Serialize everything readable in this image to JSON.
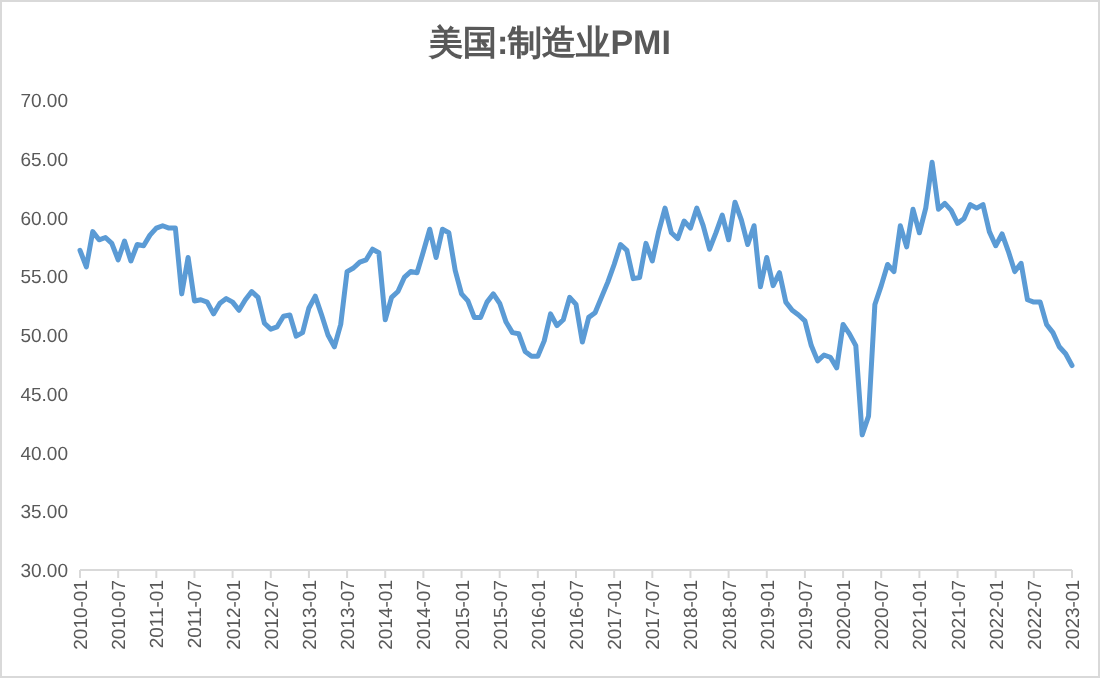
{
  "chart_data": {
    "type": "line",
    "title": "美国:制造业PMI",
    "categories": [
      "2010-01",
      null,
      null,
      null,
      null,
      null,
      "2010-07",
      null,
      null,
      null,
      null,
      null,
      "2011-01",
      null,
      null,
      null,
      null,
      null,
      "2011-07",
      null,
      null,
      null,
      null,
      null,
      "2012-01",
      null,
      null,
      null,
      null,
      null,
      "2012-07",
      null,
      null,
      null,
      null,
      null,
      "2013-01",
      null,
      null,
      null,
      null,
      null,
      "2013-07",
      null,
      null,
      null,
      null,
      null,
      "2014-01",
      null,
      null,
      null,
      null,
      null,
      "2014-07",
      null,
      null,
      null,
      null,
      null,
      "2015-01",
      null,
      null,
      null,
      null,
      null,
      "2015-07",
      null,
      null,
      null,
      null,
      null,
      "2016-01",
      null,
      null,
      null,
      null,
      null,
      "2016-07",
      null,
      null,
      null,
      null,
      null,
      "2017-01",
      null,
      null,
      null,
      null,
      null,
      "2017-07",
      null,
      null,
      null,
      null,
      null,
      "2018-01",
      null,
      null,
      null,
      null,
      null,
      "2018-07",
      null,
      null,
      null,
      null,
      null,
      "2019-01",
      null,
      null,
      null,
      null,
      null,
      "2019-07",
      null,
      null,
      null,
      null,
      null,
      "2020-01",
      null,
      null,
      null,
      null,
      null,
      "2020-07",
      null,
      null,
      null,
      null,
      null,
      "2021-01",
      null,
      null,
      null,
      null,
      null,
      "2021-07",
      null,
      null,
      null,
      null,
      null,
      "2022-01",
      null,
      null,
      null,
      null,
      null,
      "2022-07",
      null,
      null,
      null,
      null,
      null,
      "2023-01"
    ],
    "values": [
      57.2,
      55.8,
      58.8,
      58.1,
      58.3,
      57.8,
      56.4,
      58.0,
      56.3,
      57.7,
      57.6,
      58.5,
      59.1,
      59.3,
      59.1,
      59.1,
      53.5,
      56.6,
      52.9,
      53.0,
      52.8,
      51.8,
      52.7,
      53.1,
      52.8,
      52.1,
      53.0,
      53.7,
      53.2,
      51.0,
      50.5,
      50.7,
      51.6,
      51.7,
      49.9,
      50.2,
      52.3,
      53.3,
      51.7,
      50.0,
      49.0,
      50.9,
      55.4,
      55.7,
      56.2,
      56.4,
      57.3,
      57.0,
      51.3,
      53.2,
      53.7,
      54.9,
      55.4,
      55.3,
      57.1,
      59.0,
      56.6,
      59.0,
      58.7,
      55.5,
      53.5,
      52.9,
      51.5,
      51.5,
      52.8,
      53.5,
      52.7,
      51.1,
      50.2,
      50.1,
      48.6,
      48.2,
      48.2,
      49.5,
      51.8,
      50.8,
      51.3,
      53.2,
      52.6,
      49.4,
      51.5,
      51.9,
      53.2,
      54.5,
      56.0,
      57.7,
      57.2,
      54.8,
      54.9,
      57.8,
      56.3,
      58.8,
      60.8,
      58.7,
      58.2,
      59.7,
      59.1,
      60.8,
      59.3,
      57.3,
      58.7,
      60.2,
      58.1,
      61.3,
      59.8,
      57.7,
      59.3,
      54.1,
      56.6,
      54.2,
      55.3,
      52.8,
      52.1,
      51.7,
      51.2,
      49.1,
      47.8,
      48.3,
      48.1,
      47.2,
      50.9,
      50.1,
      49.1,
      41.5,
      43.1,
      52.6,
      54.2,
      56.0,
      55.4,
      59.3,
      57.5,
      60.7,
      58.7,
      60.8,
      64.7,
      60.7,
      61.2,
      60.6,
      59.5,
      59.9,
      61.1,
      60.8,
      61.1,
      58.8,
      57.6,
      58.6,
      57.1,
      55.4,
      56.1,
      53.0,
      52.8,
      52.8,
      50.9,
      50.2,
      49.0,
      48.4,
      47.4
    ],
    "color": "#5b9bd5",
    "ylim": [
      30,
      70
    ],
    "yticks": [
      {
        "value": 30,
        "label": "30.00"
      },
      {
        "value": 35,
        "label": "35.00"
      },
      {
        "value": 40,
        "label": "40.00"
      },
      {
        "value": 45,
        "label": "45.00"
      },
      {
        "value": 50,
        "label": "50.00"
      },
      {
        "value": 55,
        "label": "55.00"
      },
      {
        "value": 60,
        "label": "60.00"
      },
      {
        "value": 65,
        "label": "65.00"
      },
      {
        "value": 70,
        "label": "70.00"
      }
    ]
  }
}
